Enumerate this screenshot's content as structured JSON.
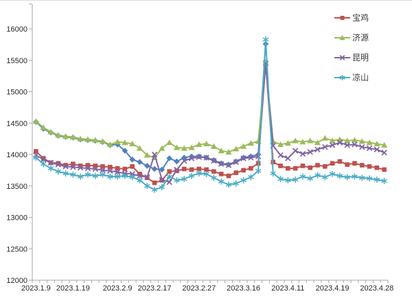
{
  "chart_data": {
    "type": "line",
    "title": "",
    "grid": false,
    "legend_position": "top-right",
    "x_axis": {
      "labels": [
        "2023.1.9",
        "2023.1.19",
        "2023.2.9",
        "2023.2.17",
        "2023.2.27",
        "2023.3.16",
        "2023.4.11",
        "2023.4.19",
        "2023.4.28"
      ],
      "label_point_indices": [
        0,
        5,
        11,
        16,
        22,
        28,
        34,
        40,
        46
      ],
      "n_points": 48
    },
    "y_axis": {
      "min": 12000,
      "max": 16000,
      "tick_interval": 500,
      "tick_labels": [
        "12000",
        "12500",
        "13000",
        "13500",
        "14000",
        "14500",
        "15000",
        "15500",
        "16000"
      ]
    },
    "series": [
      {
        "key": "unlabeled-blue",
        "name": "",
        "in_legend": false,
        "color": "#4F81BD",
        "marker": "diamond",
        "values": [
          14520,
          14410,
          14350,
          14300,
          14280,
          14270,
          14240,
          14230,
          14220,
          14200,
          14150,
          14160,
          14060,
          13920,
          13880,
          13820,
          13770,
          13760,
          13940,
          13890,
          13950,
          13970,
          13970,
          13950,
          13910,
          13860,
          13840,
          13890,
          13950,
          13970,
          14000,
          15760,
          null,
          null,
          null,
          null,
          null,
          null,
          null,
          null,
          null,
          null,
          null,
          null,
          null,
          null,
          null,
          null
        ]
      },
      {
        "key": "baoji",
        "name": "宝鸡",
        "in_legend": true,
        "color": "#C0504D",
        "marker": "square",
        "values": [
          14050,
          13940,
          13870,
          13860,
          13830,
          13850,
          13820,
          13830,
          13820,
          13810,
          13800,
          13780,
          13770,
          13810,
          13690,
          13630,
          13550,
          13590,
          13730,
          13740,
          13770,
          13760,
          13770,
          13760,
          13730,
          13690,
          13660,
          13710,
          13750,
          13780,
          13860,
          15460,
          13880,
          13820,
          13780,
          13780,
          13820,
          13790,
          13830,
          13810,
          13860,
          13890,
          13840,
          13860,
          13830,
          13810,
          13790,
          13760
        ]
      },
      {
        "key": "jiyuan",
        "name": "济源",
        "in_legend": true,
        "color": "#9BBB59",
        "marker": "triangle",
        "values": [
          14530,
          14430,
          14360,
          14310,
          14290,
          14280,
          14250,
          14240,
          14230,
          14210,
          14160,
          14200,
          14190,
          14170,
          14100,
          13990,
          13950,
          14100,
          14190,
          14110,
          14100,
          14110,
          14160,
          14170,
          14130,
          14060,
          14040,
          14090,
          14130,
          14180,
          14210,
          15470,
          14210,
          14160,
          14180,
          14220,
          14200,
          14220,
          14190,
          14260,
          14220,
          14240,
          14220,
          14230,
          14210,
          14190,
          14170,
          14150
        ]
      },
      {
        "key": "kunming",
        "name": "昆明",
        "in_legend": true,
        "color": "#8064A2",
        "marker": "x",
        "values": [
          13990,
          13920,
          13870,
          13840,
          13810,
          13800,
          13790,
          13780,
          13770,
          13750,
          13740,
          13720,
          13700,
          13690,
          13660,
          13640,
          14000,
          13600,
          13560,
          13760,
          13900,
          13940,
          13960,
          13950,
          13900,
          13850,
          13830,
          13880,
          13940,
          13950,
          13970,
          15450,
          14140,
          13990,
          13940,
          14060,
          14010,
          14040,
          14080,
          14120,
          14150,
          14190,
          14150,
          14160,
          14120,
          14100,
          14080,
          14030
        ]
      },
      {
        "key": "liangshan",
        "name": "凉山",
        "in_legend": true,
        "color": "#4BACC6",
        "marker": "asterisk",
        "values": [
          13950,
          13850,
          13780,
          13730,
          13700,
          13680,
          13650,
          13680,
          13660,
          13680,
          13650,
          13650,
          13660,
          13640,
          13590,
          13500,
          13440,
          13480,
          13650,
          13590,
          13610,
          13660,
          13700,
          13690,
          13630,
          13570,
          13520,
          13540,
          13590,
          13640,
          13740,
          15830,
          13700,
          13610,
          13590,
          13600,
          13650,
          13620,
          13670,
          13640,
          13690,
          13660,
          13640,
          13650,
          13630,
          13620,
          13600,
          13580
        ]
      }
    ]
  }
}
